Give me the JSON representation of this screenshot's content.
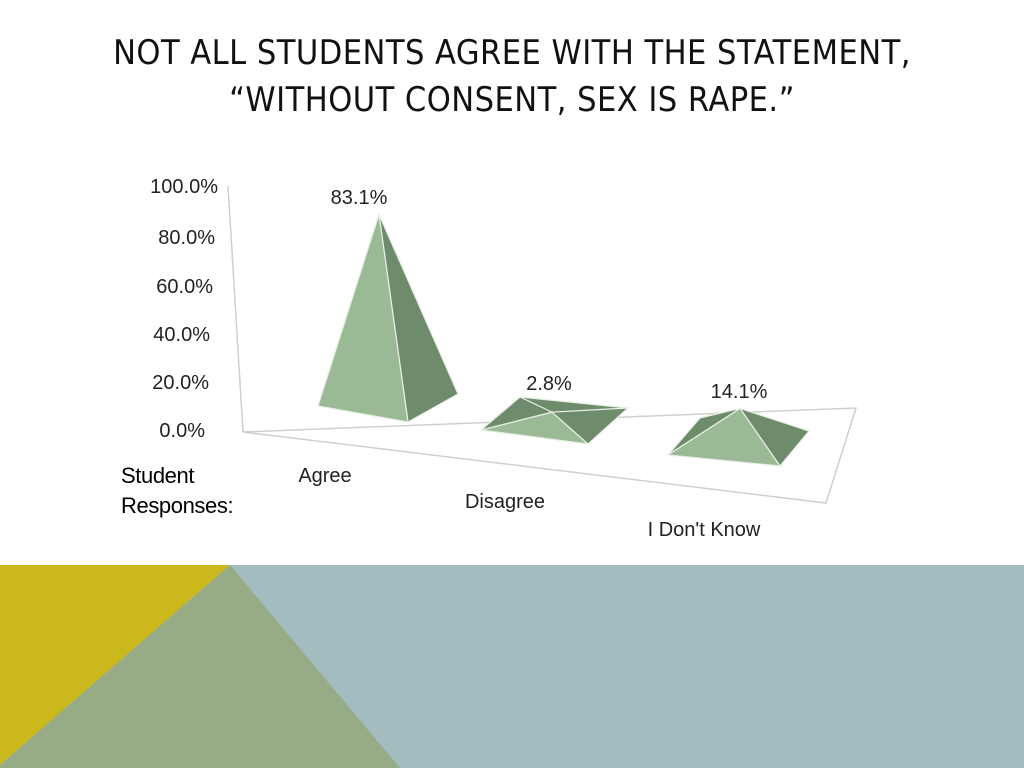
{
  "slide": {
    "title_line1": "NOT ALL STUDENTS AGREE WITH THE STATEMENT,",
    "title_line2": "“WITHOUT CONSENT, SEX IS RAPE.”",
    "responses_label_line1": "Student",
    "responses_label_line2": "Responses:"
  },
  "colors": {
    "pyramid_light": "#9aba95",
    "pyramid_dark": "#6e8c6b",
    "band_blue": "#a3bcbf",
    "band_gold": "#cbb81c",
    "band_sage": "#97ac86"
  },
  "chart_data": {
    "type": "bar",
    "style": "3d-pyramid",
    "categories": [
      "Agree",
      "Disagree",
      "I Don't Know"
    ],
    "values": [
      83.1,
      2.8,
      14.1
    ],
    "data_labels": [
      "83.1%",
      "2.8%",
      "14.1%"
    ],
    "y_ticks": [
      "0.0%",
      "20.0%",
      "40.0%",
      "60.0%",
      "80.0%",
      "100.0%"
    ],
    "ylim": [
      0,
      100
    ],
    "title": "",
    "xlabel": "",
    "ylabel": "",
    "grid": false,
    "legend": "none"
  }
}
